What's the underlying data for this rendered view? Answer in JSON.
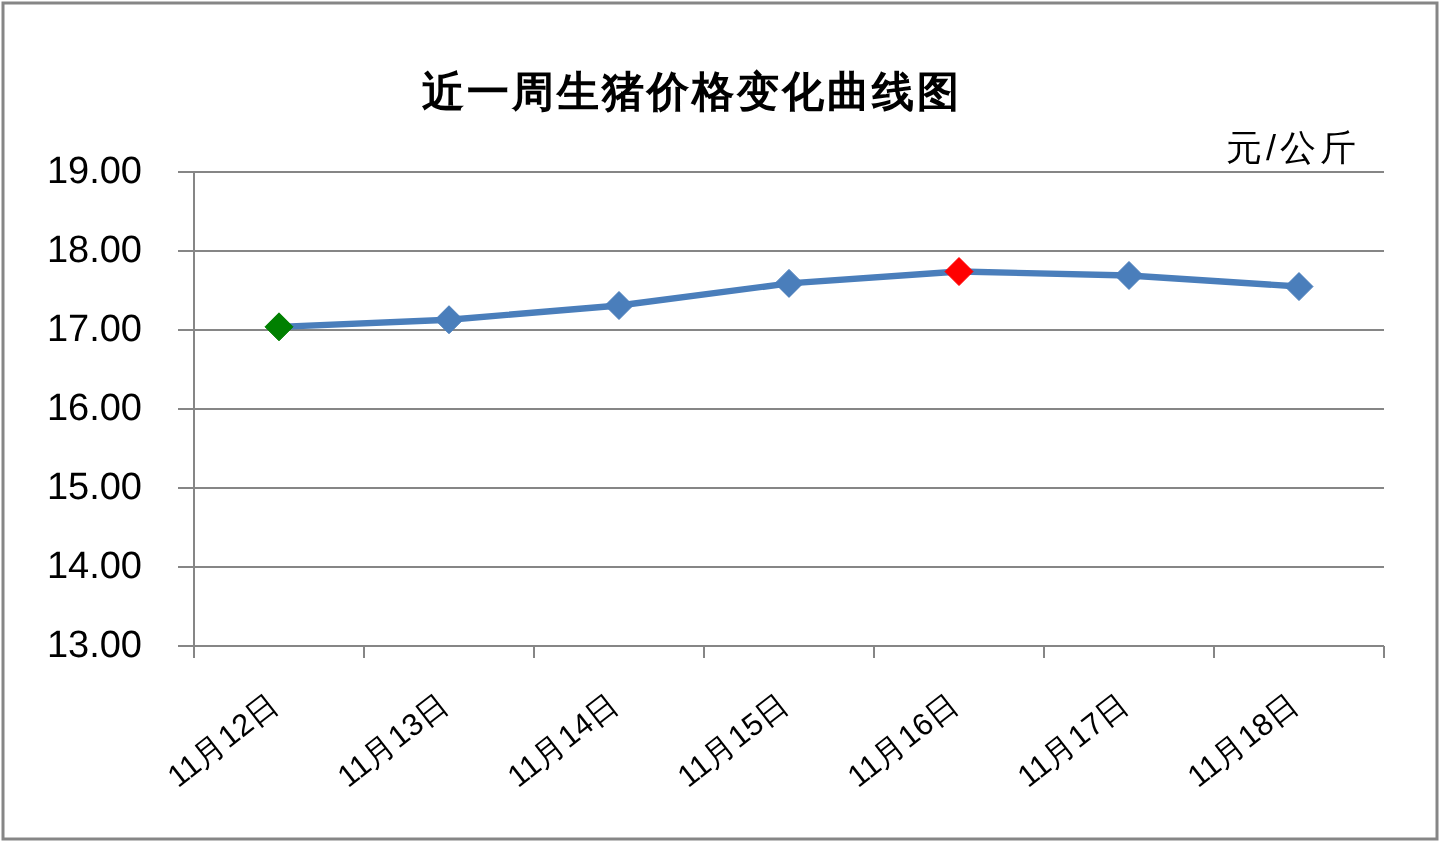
{
  "chart_data": {
    "type": "line",
    "title": "近一周生猪价格变化曲线图",
    "ylabel": "元/公斤",
    "categories": [
      "11月12日",
      "11月13日",
      "11月14日",
      "11月15日",
      "11月16日",
      "11月17日",
      "11月18日"
    ],
    "series": [
      {
        "color": "#4a7ebb",
        "colors": [
          "#008000",
          "#4a7ebb",
          "#4a7ebb",
          "#4a7ebb",
          "#ff0000",
          "#4a7ebb",
          "#4a7ebb"
        ],
        "values": [
          17.04,
          17.13,
          17.31,
          17.59,
          17.74,
          17.69,
          17.55
        ]
      }
    ],
    "ylim": [
      13,
      19
    ],
    "yticks": [
      {
        "value": 13,
        "label": "13.00"
      },
      {
        "value": 14,
        "label": "14.00"
      },
      {
        "value": 15,
        "label": "15.00"
      },
      {
        "value": 16,
        "label": "16.00"
      },
      {
        "value": 17,
        "label": "17.00"
      },
      {
        "value": 18,
        "label": "18.00"
      },
      {
        "value": 19,
        "label": "19.00"
      }
    ],
    "grid": "y",
    "marker": "diamond",
    "line_style": "solid"
  }
}
